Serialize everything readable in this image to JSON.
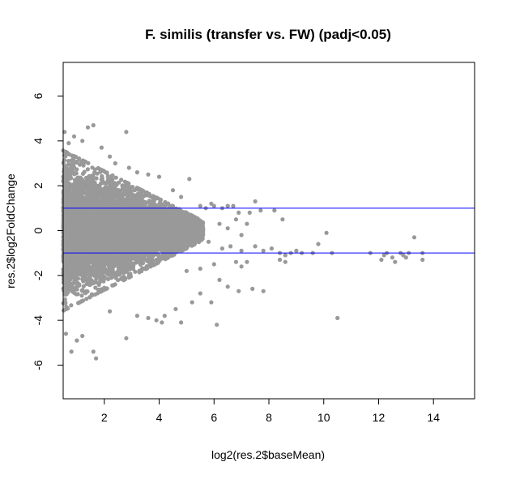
{
  "chart_data": {
    "type": "scatter",
    "title": "F. similis (transfer vs. FW) (padj<0.05)",
    "xlabel": "log2(res.2$baseMean)",
    "ylabel": "res.2$log2FoldChange",
    "xlim": [
      0.5,
      15.5
    ],
    "ylim": [
      -7.5,
      7.5
    ],
    "xticks": [
      2,
      4,
      6,
      8,
      10,
      12,
      14
    ],
    "yticks": [
      -6,
      -4,
      -2,
      0,
      2,
      4,
      6
    ],
    "hlines": [
      1,
      -1
    ],
    "hline_color": "#0000ff",
    "point_color": "#999999",
    "grid": false,
    "legend": "none",
    "points": [
      [
        0.55,
        4.4
      ],
      [
        0.9,
        4.2
      ],
      [
        1.4,
        4.6
      ],
      [
        1.6,
        4.7
      ],
      [
        2.8,
        4.4
      ],
      [
        1.2,
        4.0
      ],
      [
        0.7,
        3.9
      ],
      [
        1.9,
        3.7
      ],
      [
        2.2,
        3.3
      ],
      [
        2.4,
        3.0
      ],
      [
        2.9,
        2.8
      ],
      [
        3.2,
        2.6
      ],
      [
        3.6,
        2.5
      ],
      [
        4.0,
        2.4
      ],
      [
        5.1,
        2.3
      ],
      [
        4.5,
        1.8
      ],
      [
        4.8,
        1.5
      ],
      [
        5.5,
        1.1
      ],
      [
        5.7,
        1.0
      ],
      [
        5.9,
        1.2
      ],
      [
        6.0,
        1.1
      ],
      [
        6.3,
        1.0
      ],
      [
        6.5,
        1.1
      ],
      [
        6.7,
        1.1
      ],
      [
        6.9,
        0.8
      ],
      [
        7.3,
        0.8
      ],
      [
        7.5,
        1.3
      ],
      [
        7.7,
        0.9
      ],
      [
        8.2,
        0.9
      ],
      [
        8.5,
        0.5
      ],
      [
        6.2,
        0.3
      ],
      [
        6.5,
        0.1
      ],
      [
        7.0,
        -0.2
      ],
      [
        7.2,
        0.3
      ],
      [
        6.8,
        0.5
      ],
      [
        5.8,
        -0.5
      ],
      [
        6.3,
        -0.8
      ],
      [
        6.6,
        -0.7
      ],
      [
        7.0,
        -0.9
      ],
      [
        7.5,
        -0.7
      ],
      [
        7.8,
        -0.9
      ],
      [
        8.1,
        -0.8
      ],
      [
        8.4,
        -1.0
      ],
      [
        8.6,
        -1.1
      ],
      [
        8.8,
        -1.0
      ],
      [
        9.0,
        -0.9
      ],
      [
        9.2,
        -1.0
      ],
      [
        9.6,
        -1.0
      ],
      [
        9.8,
        -0.6
      ],
      [
        10.1,
        -0.1
      ],
      [
        10.3,
        -1.0
      ],
      [
        8.4,
        -1.3
      ],
      [
        8.6,
        -1.4
      ],
      [
        7.2,
        -1.4
      ],
      [
        7.0,
        -1.6
      ],
      [
        6.8,
        -1.4
      ],
      [
        6.0,
        -1.5
      ],
      [
        5.5,
        -1.7
      ],
      [
        5.0,
        -1.8
      ],
      [
        6.2,
        -2.2
      ],
      [
        6.5,
        -2.5
      ],
      [
        6.9,
        -2.7
      ],
      [
        7.4,
        -2.6
      ],
      [
        7.8,
        -2.7
      ],
      [
        5.5,
        -2.8
      ],
      [
        5.9,
        -3.2
      ],
      [
        5.2,
        -3.2
      ],
      [
        4.6,
        -3.5
      ],
      [
        4.2,
        -3.8
      ],
      [
        4.8,
        -4.1
      ],
      [
        4.1,
        -4.1
      ],
      [
        6.1,
        -4.2
      ],
      [
        3.9,
        -4.0
      ],
      [
        3.6,
        -3.9
      ],
      [
        3.2,
        -3.8
      ],
      [
        2.8,
        -4.8
      ],
      [
        2.2,
        -3.6
      ],
      [
        1.6,
        -5.4
      ],
      [
        1.7,
        -5.7
      ],
      [
        1.2,
        -4.7
      ],
      [
        1.0,
        -4.9
      ],
      [
        0.8,
        -5.4
      ],
      [
        0.6,
        -4.6
      ],
      [
        10.5,
        -3.9
      ],
      [
        11.7,
        -1.0
      ],
      [
        12.1,
        -1.3
      ],
      [
        12.3,
        -1.0
      ],
      [
        12.5,
        -1.2
      ],
      [
        12.8,
        -1.0
      ],
      [
        12.9,
        -1.1
      ],
      [
        13.0,
        -1.2
      ],
      [
        13.1,
        -1.0
      ],
      [
        13.3,
        -0.3
      ],
      [
        13.6,
        -1.0
      ],
      [
        13.6,
        -1.3
      ],
      [
        12.2,
        -1.1
      ],
      [
        12.6,
        -1.4
      ]
    ],
    "dense_cloud": {
      "x_range": [
        0.5,
        5.6
      ],
      "band_halfwidth_at_min_x": 3.4,
      "band_halfwidth_at_max_x": 0.4
    }
  }
}
